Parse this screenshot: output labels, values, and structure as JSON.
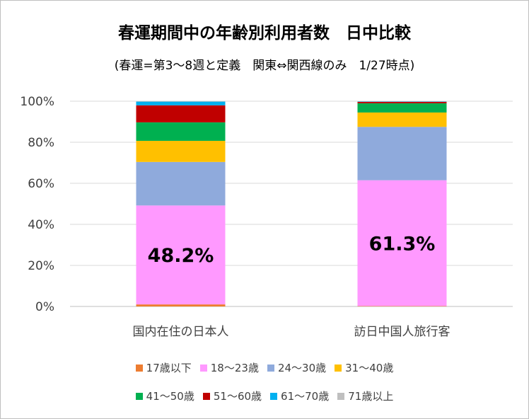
{
  "chart_data": {
    "type": "bar",
    "stacked": true,
    "title": "春運期間中の年齢別利用者数　日中比較",
    "subtitle": "(春運=第3～8週と定義　関東⇔関西線のみ　1/27時点)",
    "categories": [
      "国内在住の日本人",
      "訪日中国人旅行客"
    ],
    "ylim": [
      0,
      100
    ],
    "yticks": [
      "0%",
      "20%",
      "40%",
      "60%",
      "80%",
      "100%"
    ],
    "grid": true,
    "legend_position": "bottom",
    "series": [
      {
        "name": "17歳以下",
        "color": "#ED7D31",
        "values": [
          1.0,
          0.2
        ]
      },
      {
        "name": "18～23歳",
        "color": "#FF99FF",
        "values": [
          48.2,
          61.3
        ]
      },
      {
        "name": "24～30歳",
        "color": "#8FAADC",
        "values": [
          21.2,
          26.0
        ]
      },
      {
        "name": "31～40歳",
        "color": "#FFC000",
        "values": [
          10.3,
          7.0
        ]
      },
      {
        "name": "41～50歳",
        "color": "#00B050",
        "values": [
          9.0,
          4.5
        ]
      },
      {
        "name": "51～60歳",
        "color": "#C00000",
        "values": [
          8.3,
          0.7
        ]
      },
      {
        "name": "61～70歳",
        "color": "#00B0F0",
        "values": [
          1.8,
          0.2
        ]
      },
      {
        "name": "71歳以上",
        "color": "#BFBFBF",
        "values": [
          0.2,
          0.1
        ]
      }
    ],
    "annotations": [
      {
        "category": 0,
        "series": 1,
        "text": "48.2%"
      },
      {
        "category": 1,
        "series": 1,
        "text": "61.3%"
      }
    ]
  }
}
